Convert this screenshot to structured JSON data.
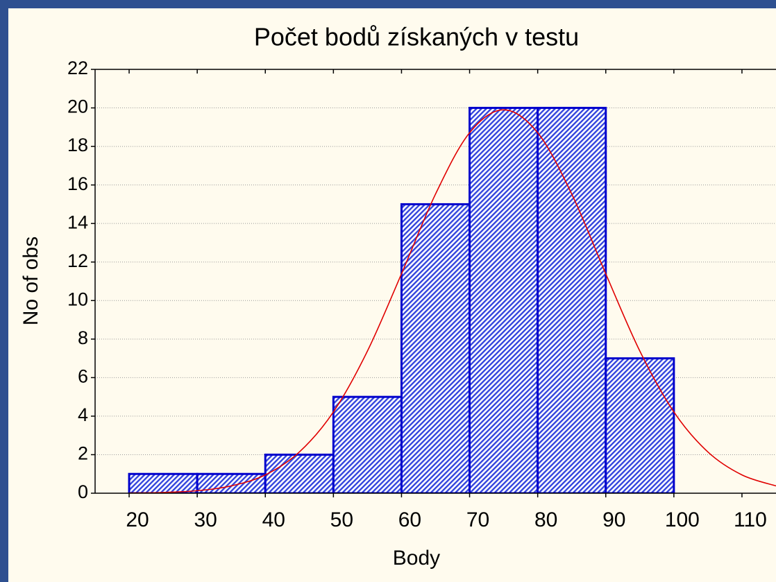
{
  "chart_data": {
    "type": "histogram",
    "title": "Počet bodů získaných v testu",
    "x_label": "Body",
    "y_label": "No of obs",
    "bins": [
      20,
      30,
      40,
      50,
      60,
      70,
      80,
      90,
      100
    ],
    "counts": [
      1,
      1,
      2,
      5,
      15,
      20,
      20,
      7
    ],
    "color": "#0000cc",
    "fit": {
      "color": "#e00000",
      "x": [
        20,
        25,
        30,
        35,
        40,
        45,
        50,
        55,
        60,
        65,
        70,
        75,
        80,
        85,
        90,
        95,
        100,
        105,
        110,
        115
      ],
      "values": [
        0.01,
        0.04,
        0.13,
        0.38,
        0.95,
        2.14,
        4.22,
        7.38,
        11.39,
        15.53,
        18.71,
        19.9,
        18.71,
        15.53,
        11.39,
        7.38,
        4.22,
        2.14,
        0.95,
        0.38
      ]
    },
    "xlim": [
      15,
      115
    ],
    "ylim": [
      0,
      22
    ],
    "xticks": [
      20,
      30,
      40,
      50,
      60,
      70,
      80,
      90,
      100,
      110
    ],
    "yticks": [
      0,
      2,
      4,
      6,
      8,
      10,
      12,
      14,
      16,
      18,
      20,
      22
    ],
    "grid": true
  }
}
